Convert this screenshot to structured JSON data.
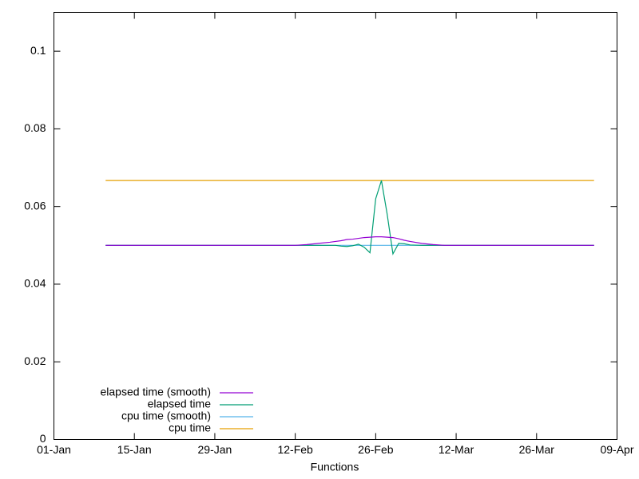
{
  "chart_data": {
    "type": "line",
    "xlabel": "Functions",
    "x": [
      "10-Jan",
      "12-Feb",
      "14-Feb",
      "16-Feb",
      "18-Feb",
      "19-Feb",
      "20-Feb",
      "21-Feb",
      "22-Feb",
      "23-Feb",
      "24-Feb",
      "25-Feb",
      "26-Feb",
      "27-Feb",
      "28-Feb",
      "01-Mar",
      "02-Mar",
      "03-Mar",
      "04-Mar",
      "06-Mar",
      "08-Mar",
      "10-Mar",
      "12-Mar",
      "05-Apr"
    ],
    "series": [
      {
        "name": "elapsed time (smooth)",
        "color": "#9400d3",
        "values": [
          0.05,
          0.05,
          0.0502,
          0.0505,
          0.0508,
          0.051,
          0.0512,
          0.0515,
          0.0516,
          0.0518,
          0.052,
          0.0521,
          0.0522,
          0.0522,
          0.0521,
          0.052,
          0.0517,
          0.0513,
          0.051,
          0.0505,
          0.0502,
          0.05,
          0.05,
          0.05
        ]
      },
      {
        "name": "elapsed time",
        "color": "#009e73",
        "values": [
          0.05,
          0.05,
          0.05,
          0.05,
          0.05,
          0.05,
          0.0498,
          0.0497,
          0.0499,
          0.0503,
          0.0495,
          0.0481,
          0.062,
          0.0667,
          0.058,
          0.0478,
          0.0505,
          0.0504,
          0.0501,
          0.05,
          0.05,
          0.05,
          0.05,
          0.05
        ]
      },
      {
        "name": "cpu time (smooth)",
        "color": "#56b4e9",
        "values": [
          0.05,
          0.05,
          0.05,
          0.05,
          0.05,
          0.05,
          0.05,
          0.05,
          0.05,
          0.05,
          0.05,
          0.05,
          0.05,
          0.05,
          0.05,
          0.05,
          0.05,
          0.05,
          0.05,
          0.05,
          0.05,
          0.05,
          0.05,
          0.05
        ]
      },
      {
        "name": "cpu time",
        "color": "#e69f00",
        "values": [
          0.0667,
          0.0667,
          0.0667,
          0.0667,
          0.0667,
          0.0667,
          0.0667,
          0.0667,
          0.0667,
          0.0667,
          0.0667,
          0.0667,
          0.0667,
          0.0667,
          0.0667,
          0.0667,
          0.0667,
          0.0667,
          0.0667,
          0.0667,
          0.0667,
          0.0667,
          0.0667,
          0.0667
        ]
      }
    ],
    "xlim": [
      "01-Jan",
      "09-Apr"
    ],
    "xticks": [
      "01-Jan",
      "15-Jan",
      "29-Jan",
      "12-Feb",
      "26-Feb",
      "12-Mar",
      "26-Mar",
      "09-Apr"
    ],
    "ylim": [
      0,
      0.11
    ],
    "yticks": [
      0,
      0.02,
      0.04,
      0.06,
      0.08,
      0.1
    ],
    "legend": "bottom left"
  }
}
